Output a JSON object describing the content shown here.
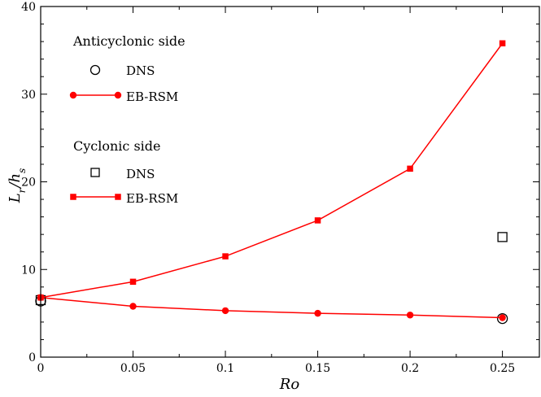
{
  "chart_data": {
    "type": "line",
    "xlabel": "Ro",
    "ylabel": "L_r/h_s",
    "xlim": [
      0,
      0.27
    ],
    "ylim": [
      0,
      40
    ],
    "xticks": [
      0,
      0.05,
      0.1,
      0.15,
      0.2,
      0.25
    ],
    "xtick_labels": [
      "0",
      "0.05",
      "0.1",
      "0.15",
      "0.2",
      "0.25"
    ],
    "yticks": [
      0,
      10,
      20,
      30,
      40
    ],
    "ytick_labels": [
      "0",
      "10",
      "20",
      "30",
      "40"
    ],
    "grid": false,
    "legend_position": "top-left",
    "legend_groups": [
      {
        "header": "Anticyclonic side",
        "entries": [
          "DNS",
          "EB-RSM"
        ]
      },
      {
        "header": "Cyclonic side",
        "entries": [
          "DNS",
          "EB-RSM"
        ]
      }
    ],
    "series": [
      {
        "group": "Anticyclonic side",
        "name": "DNS",
        "marker": "open-circle",
        "line": false,
        "color": "#000000",
        "x": [
          0,
          0.25
        ],
        "y": [
          6.4,
          4.4
        ]
      },
      {
        "group": "Anticyclonic side",
        "name": "EB-RSM",
        "marker": "filled-circle",
        "line": true,
        "color": "#ff0000",
        "x": [
          0,
          0.05,
          0.1,
          0.15,
          0.2,
          0.25
        ],
        "y": [
          6.8,
          5.8,
          5.3,
          5.0,
          4.8,
          4.5
        ]
      },
      {
        "group": "Cyclonic side",
        "name": "DNS",
        "marker": "open-square",
        "line": false,
        "color": "#000000",
        "x": [
          0,
          0.25
        ],
        "y": [
          6.5,
          13.7
        ]
      },
      {
        "group": "Cyclonic side",
        "name": "EB-RSM",
        "marker": "filled-square",
        "line": true,
        "color": "#ff0000",
        "x": [
          0,
          0.05,
          0.1,
          0.15,
          0.2,
          0.25
        ],
        "y": [
          6.8,
          8.6,
          11.5,
          15.6,
          21.5,
          35.8
        ]
      }
    ]
  }
}
